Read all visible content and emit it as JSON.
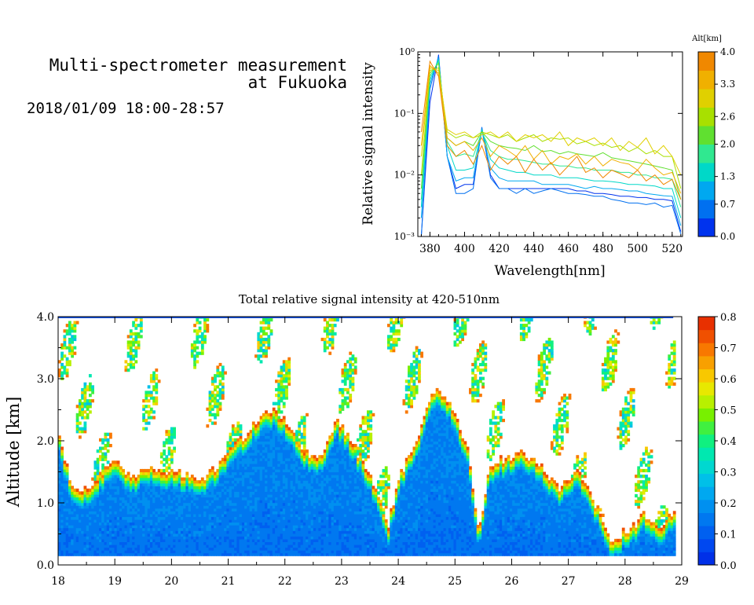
{
  "header": {
    "title_line1": "Multi-spectrometer measurement",
    "title_line2": "at Fukuoka",
    "date_range": "2018/01/09 18:00-28:57"
  },
  "chart_data": [
    {
      "type": "line",
      "title": "",
      "xlabel": "Wavelength[nm]",
      "ylabel": "Relative signal intensity",
      "xlim": [
        373,
        526
      ],
      "ylim": [
        0.001,
        1
      ],
      "yscale": "log",
      "x_ticks": [
        "380",
        "400",
        "420",
        "440",
        "460",
        "480",
        "500",
        "520"
      ],
      "y_ticks": [
        "10⁻³",
        "10⁻²",
        "10⁻¹",
        "10⁰"
      ],
      "colorbar": {
        "title": "Alt[km]",
        "ticks": [
          "0.0",
          "0.7",
          "1.3",
          "2.0",
          "2.6",
          "3.3",
          "4.0"
        ],
        "range": [
          0,
          4
        ],
        "colors": [
          "#0033ee",
          "#0070f0",
          "#00a8f0",
          "#00d8c8",
          "#30e890",
          "#60e030",
          "#a8e000",
          "#e0d000",
          "#f0b000",
          "#f08800"
        ]
      },
      "x": [
        375,
        380,
        385,
        390,
        395,
        400,
        405,
        410,
        415,
        420,
        425,
        430,
        435,
        440,
        445,
        450,
        455,
        460,
        465,
        470,
        475,
        480,
        485,
        490,
        495,
        500,
        505,
        510,
        515,
        520,
        525
      ],
      "series": [
        {
          "alt": 0.2,
          "values": [
            0.001,
            0.15,
            0.9,
            0.02,
            0.006,
            0.007,
            0.007,
            0.055,
            0.01,
            0.006,
            0.006,
            0.006,
            0.006,
            0.006,
            0.006,
            0.006,
            0.006,
            0.006,
            0.0055,
            0.0055,
            0.005,
            0.005,
            0.0048,
            0.0045,
            0.0045,
            0.0043,
            0.0043,
            0.004,
            0.004,
            0.0038,
            0.0012
          ]
        },
        {
          "alt": 0.5,
          "values": [
            0.001,
            0.25,
            0.85,
            0.02,
            0.005,
            0.005,
            0.006,
            0.06,
            0.009,
            0.006,
            0.006,
            0.005,
            0.006,
            0.005,
            0.0055,
            0.006,
            0.0055,
            0.005,
            0.005,
            0.0048,
            0.0045,
            0.0045,
            0.004,
            0.0038,
            0.0035,
            0.0035,
            0.0033,
            0.0035,
            0.003,
            0.0032,
            0.0011
          ]
        },
        {
          "alt": 0.9,
          "values": [
            0.002,
            0.3,
            0.8,
            0.02,
            0.008,
            0.009,
            0.009,
            0.055,
            0.013,
            0.009,
            0.008,
            0.008,
            0.008,
            0.008,
            0.007,
            0.007,
            0.007,
            0.007,
            0.0065,
            0.006,
            0.0065,
            0.006,
            0.006,
            0.0058,
            0.0055,
            0.0055,
            0.005,
            0.0048,
            0.0046,
            0.0045,
            0.0015
          ]
        },
        {
          "alt": 1.3,
          "values": [
            0.003,
            0.35,
            0.75,
            0.03,
            0.012,
            0.012,
            0.013,
            0.055,
            0.018,
            0.013,
            0.012,
            0.011,
            0.011,
            0.01,
            0.01,
            0.01,
            0.009,
            0.009,
            0.009,
            0.0085,
            0.008,
            0.008,
            0.0078,
            0.0075,
            0.007,
            0.007,
            0.0068,
            0.0066,
            0.006,
            0.006,
            0.002
          ]
        },
        {
          "alt": 1.6,
          "values": [
            0.004,
            0.4,
            0.7,
            0.035,
            0.02,
            0.022,
            0.02,
            0.05,
            0.025,
            0.02,
            0.018,
            0.018,
            0.017,
            0.016,
            0.015,
            0.015,
            0.014,
            0.014,
            0.013,
            0.013,
            0.012,
            0.012,
            0.012,
            0.011,
            0.011,
            0.01,
            0.01,
            0.009,
            0.009,
            0.0085,
            0.003
          ]
        },
        {
          "alt": 2.0,
          "values": [
            0.006,
            0.45,
            0.65,
            0.04,
            0.03,
            0.035,
            0.03,
            0.05,
            0.035,
            0.03,
            0.028,
            0.027,
            0.025,
            0.03,
            0.024,
            0.025,
            0.022,
            0.024,
            0.022,
            0.021,
            0.02,
            0.023,
            0.019,
            0.018,
            0.017,
            0.016,
            0.015,
            0.014,
            0.013,
            0.012,
            0.004
          ]
        },
        {
          "alt": 2.4,
          "values": [
            0.01,
            0.5,
            0.55,
            0.05,
            0.04,
            0.045,
            0.04,
            0.05,
            0.045,
            0.04,
            0.045,
            0.035,
            0.04,
            0.045,
            0.035,
            0.04,
            0.038,
            0.04,
            0.032,
            0.035,
            0.03,
            0.033,
            0.028,
            0.03,
            0.024,
            0.028,
            0.022,
            0.025,
            0.02,
            0.02,
            0.006
          ]
        },
        {
          "alt": 2.8,
          "values": [
            0.02,
            0.55,
            0.5,
            0.055,
            0.045,
            0.05,
            0.04,
            0.045,
            0.05,
            0.04,
            0.05,
            0.035,
            0.045,
            0.04,
            0.045,
            0.035,
            0.05,
            0.03,
            0.04,
            0.035,
            0.04,
            0.03,
            0.04,
            0.025,
            0.035,
            0.028,
            0.04,
            0.022,
            0.03,
            0.02,
            0.01
          ]
        },
        {
          "alt": 3.2,
          "values": [
            0.03,
            0.6,
            0.45,
            0.04,
            0.03,
            0.035,
            0.025,
            0.04,
            0.02,
            0.03,
            0.025,
            0.02,
            0.03,
            0.018,
            0.025,
            0.015,
            0.02,
            0.018,
            0.022,
            0.015,
            0.02,
            0.014,
            0.018,
            0.016,
            0.015,
            0.012,
            0.018,
            0.013,
            0.01,
            0.011,
            0.005
          ]
        },
        {
          "alt": 3.6,
          "values": [
            0.05,
            0.7,
            0.4,
            0.03,
            0.02,
            0.025,
            0.015,
            0.03,
            0.012,
            0.02,
            0.015,
            0.02,
            0.011,
            0.018,
            0.012,
            0.016,
            0.01,
            0.014,
            0.02,
            0.011,
            0.013,
            0.009,
            0.012,
            0.0105,
            0.009,
            0.012,
            0.008,
            0.01,
            0.007,
            0.0085,
            0.004
          ]
        }
      ]
    },
    {
      "type": "heatmap",
      "title": "Total relative signal intensity at 420-510nm",
      "xlabel": "",
      "ylabel": "Altitude [km]",
      "xlim": [
        18,
        29
      ],
      "ylim": [
        0,
        4
      ],
      "x_ticks": [
        "18",
        "19",
        "20",
        "21",
        "22",
        "23",
        "24",
        "25",
        "26",
        "27",
        "28",
        "29"
      ],
      "y_ticks": [
        "0.0",
        "1.0",
        "2.0",
        "3.0",
        "4.0"
      ],
      "colorbar": {
        "title": "",
        "ticks": [
          "0.0",
          "0.1",
          "0.2",
          "0.3",
          "0.4",
          "0.5",
          "0.6",
          "0.7",
          "0.8"
        ],
        "range": [
          0,
          0.8
        ],
        "colors": [
          "#0030e8",
          "#0048f0",
          "#0060f0",
          "#0078f0",
          "#0090f0",
          "#00a8f0",
          "#00c0e8",
          "#00d8d0",
          "#00e8b0",
          "#10f080",
          "#40f040",
          "#78f000",
          "#b8f000",
          "#e8e800",
          "#f8c800",
          "#f8a000",
          "#f87800",
          "#f05000",
          "#e83000"
        ]
      },
      "cloud_base_km": [
        {
          "t": 18.0,
          "h": 2.0
        },
        {
          "t": 18.2,
          "h": 1.3
        },
        {
          "t": 18.5,
          "h": 1.15
        },
        {
          "t": 18.8,
          "h": 1.55
        },
        {
          "t": 19.0,
          "h": 1.6
        },
        {
          "t": 19.3,
          "h": 1.4
        },
        {
          "t": 19.6,
          "h": 1.55
        },
        {
          "t": 19.9,
          "h": 1.5
        },
        {
          "t": 20.2,
          "h": 1.45
        },
        {
          "t": 20.5,
          "h": 1.3
        },
        {
          "t": 20.8,
          "h": 1.6
        },
        {
          "t": 21.1,
          "h": 1.9
        },
        {
          "t": 21.4,
          "h": 2.2
        },
        {
          "t": 21.7,
          "h": 2.5
        },
        {
          "t": 22.0,
          "h": 2.3
        },
        {
          "t": 22.3,
          "h": 1.8
        },
        {
          "t": 22.6,
          "h": 1.7
        },
        {
          "t": 22.9,
          "h": 2.3
        },
        {
          "t": 23.2,
          "h": 1.9
        },
        {
          "t": 23.5,
          "h": 1.4
        },
        {
          "t": 23.8,
          "h": 0.6
        },
        {
          "t": 24.0,
          "h": 1.4
        },
        {
          "t": 24.3,
          "h": 2.0
        },
        {
          "t": 24.6,
          "h": 2.8
        },
        {
          "t": 24.9,
          "h": 2.6
        },
        {
          "t": 25.2,
          "h": 1.8
        },
        {
          "t": 25.4,
          "h": 0.5
        },
        {
          "t": 25.6,
          "h": 1.6
        },
        {
          "t": 25.9,
          "h": 1.7
        },
        {
          "t": 26.2,
          "h": 1.8
        },
        {
          "t": 26.5,
          "h": 1.6
        },
        {
          "t": 26.8,
          "h": 1.2
        },
        {
          "t": 27.1,
          "h": 1.5
        },
        {
          "t": 27.4,
          "h": 1.1
        },
        {
          "t": 27.7,
          "h": 0.4
        },
        {
          "t": 28.0,
          "h": 0.5
        },
        {
          "t": 28.3,
          "h": 0.8
        },
        {
          "t": 28.6,
          "h": 0.6
        },
        {
          "t": 28.85,
          "h": 0.8
        }
      ]
    }
  ]
}
